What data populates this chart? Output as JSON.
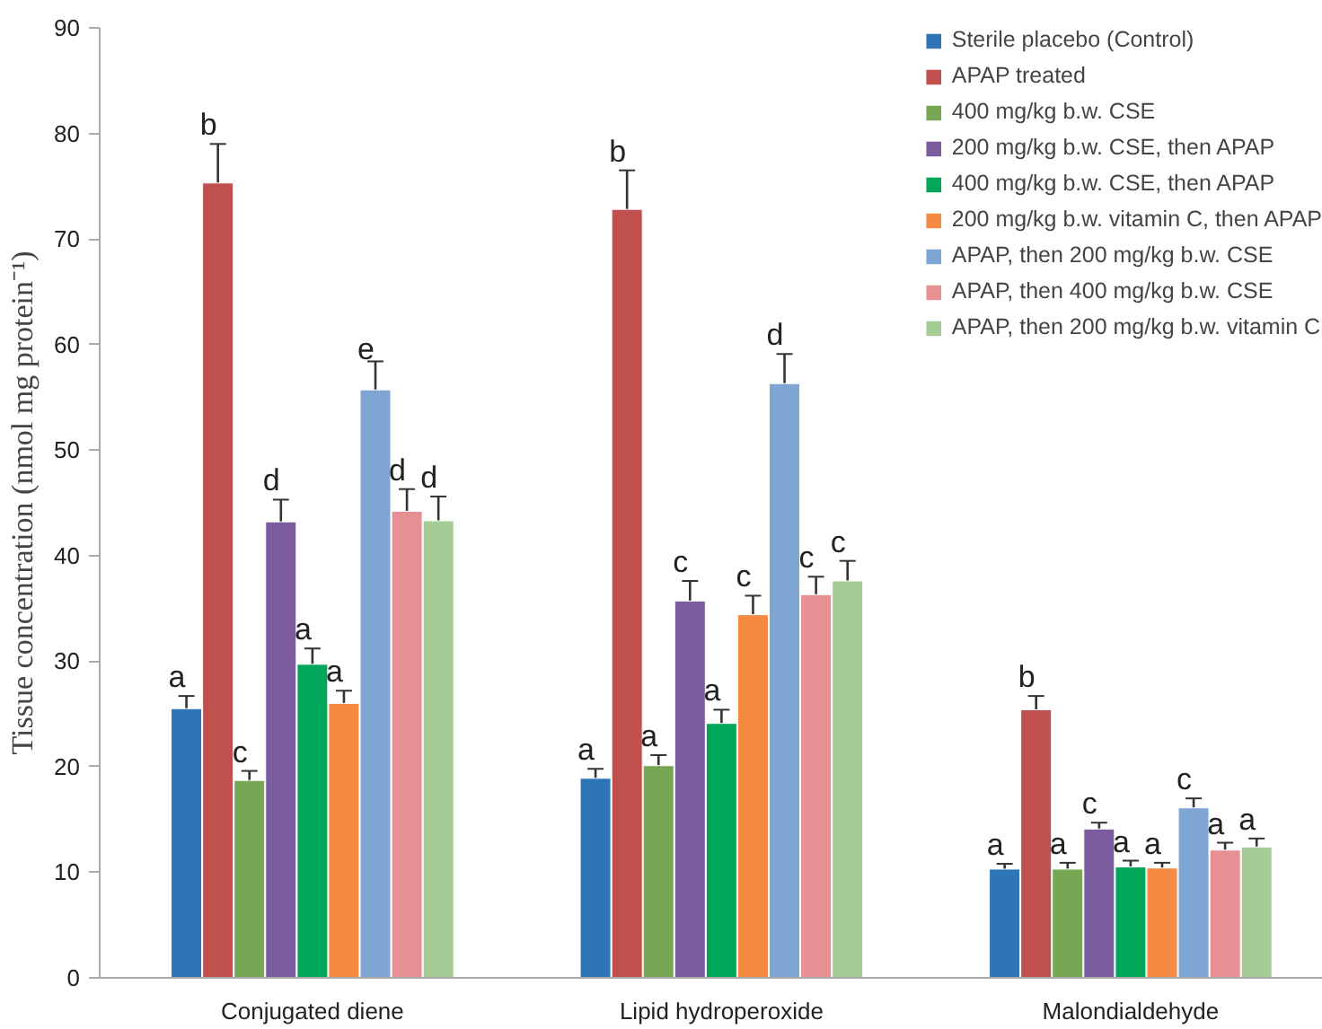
{
  "chart_data": {
    "type": "bar",
    "ylabel": "Tissue concentration (nmol mg protein⁻¹)",
    "categories": [
      "Conjugated diene",
      "Lipid hydroperoxide",
      "Malondialdehyde"
    ],
    "ylim": [
      0,
      90
    ],
    "yticks": [
      0,
      10,
      20,
      30,
      40,
      50,
      60,
      70,
      80,
      90
    ],
    "grid": false,
    "legend": "top right",
    "series": [
      {
        "name": "Sterile placebo (Control)",
        "color": "#2e75b6",
        "values": [
          25.5,
          18.9,
          10.3
        ],
        "errors": [
          1.2,
          0.9,
          0.5
        ],
        "value_labels": [
          "a",
          "a",
          "a"
        ]
      },
      {
        "name": "APAP treated",
        "color": "#c0504d",
        "values": [
          75.3,
          72.8,
          25.4
        ],
        "errors": [
          3.7,
          3.7,
          1.3
        ],
        "value_labels": [
          "b",
          "b",
          "b"
        ]
      },
      {
        "name": "400 mg/kg b.w. CSE",
        "color": "#77a755",
        "values": [
          18.7,
          20.1,
          10.3
        ],
        "errors": [
          0.9,
          1.0,
          0.6
        ],
        "value_labels": [
          "c",
          "a",
          "a"
        ]
      },
      {
        "name": "200 mg/kg b.w. CSE, then APAP",
        "color": "#7b5c9c",
        "values": [
          43.2,
          35.7,
          14.1
        ],
        "errors": [
          2.1,
          1.9,
          0.6
        ],
        "value_labels": [
          "d",
          "c",
          "c"
        ]
      },
      {
        "name": "400 mg/kg b.w. CSE, then APAP",
        "color": "#00a65a",
        "values": [
          29.7,
          24.1,
          10.5
        ],
        "errors": [
          1.5,
          1.3,
          0.6
        ],
        "value_labels": [
          "a",
          "a",
          "a"
        ]
      },
      {
        "name": "200 mg/kg b.w. vitamin C, then APAP",
        "color": "#f58a42",
        "values": [
          26.0,
          34.4,
          10.4
        ],
        "errors": [
          1.2,
          1.8,
          0.5
        ],
        "value_labels": [
          "a",
          "c",
          "a"
        ]
      },
      {
        "name": "APAP, then 200 mg/kg b.w. CSE",
        "color": "#7fa6d2",
        "values": [
          55.7,
          56.3,
          16.1
        ],
        "errors": [
          2.7,
          2.8,
          0.9
        ],
        "value_labels": [
          "e",
          "d",
          "c"
        ]
      },
      {
        "name": "APAP, then 400 mg/kg b.w. CSE",
        "color": "#e69094",
        "values": [
          44.2,
          36.3,
          12.1
        ],
        "errors": [
          2.1,
          1.7,
          0.7
        ],
        "value_labels": [
          "d",
          "c",
          "a"
        ]
      },
      {
        "name": "APAP, then 200 mg/kg b.w. vitamin C",
        "color": "#a6cc96",
        "values": [
          43.3,
          37.6,
          12.4
        ],
        "errors": [
          2.3,
          1.9,
          0.8
        ],
        "value_labels": [
          "d",
          "c",
          "a"
        ]
      }
    ]
  }
}
